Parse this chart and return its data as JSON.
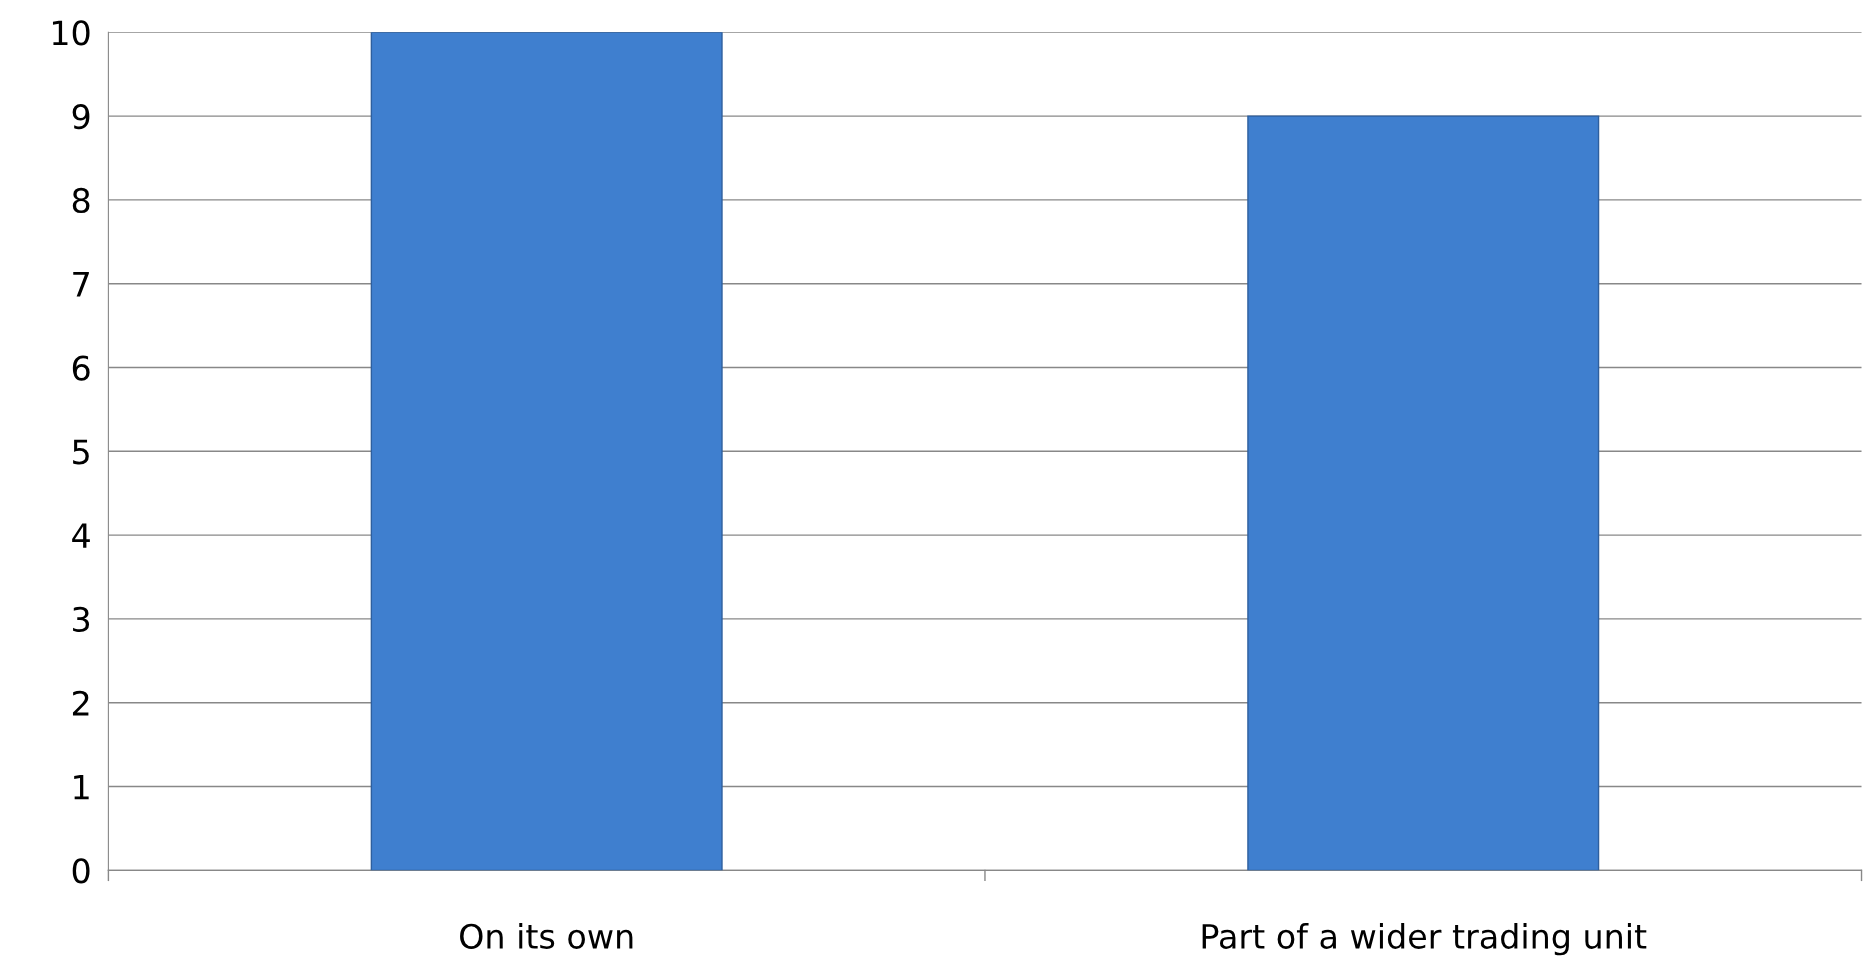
{
  "chart_data": {
    "type": "bar",
    "categories": [
      "On its own",
      "Part of a wider trading unit"
    ],
    "values": [
      10,
      9
    ],
    "color": "#3f7fcf",
    "ylim": [
      0,
      10
    ],
    "yticks": [
      0,
      1,
      2,
      3,
      4,
      5,
      6,
      7,
      8,
      9,
      10
    ],
    "grid": "y"
  }
}
